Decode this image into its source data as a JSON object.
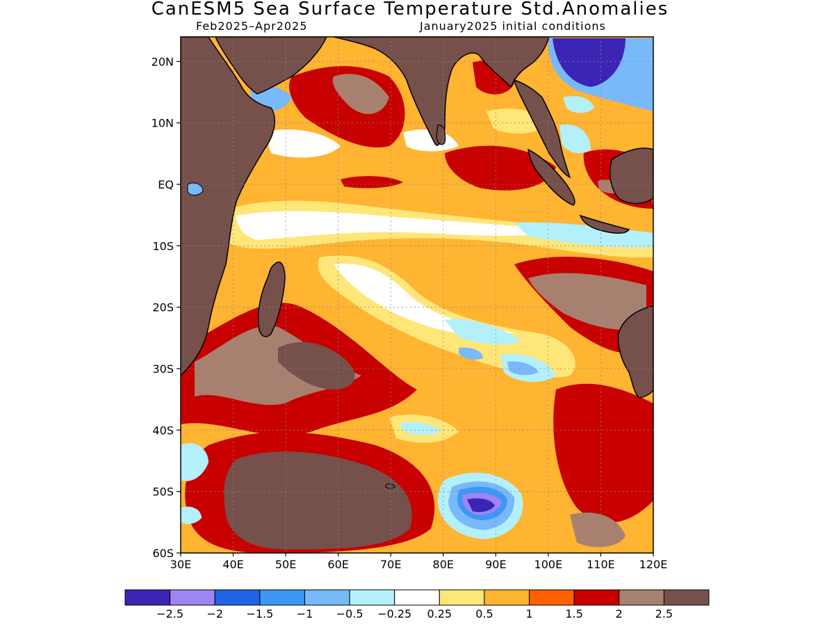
{
  "header": {
    "title": "CanESM5 Sea Surface Temperature Std.Anomalies",
    "period": "Feb2025–Apr2025",
    "init": "January2025 initial conditions"
  },
  "map": {
    "lon_range": [
      30,
      120
    ],
    "lat_range": [
      -60,
      24
    ],
    "lat_ticks": [
      {
        "value": 20,
        "label": "20N"
      },
      {
        "value": 10,
        "label": "10N"
      },
      {
        "value": 0,
        "label": "EQ"
      },
      {
        "value": -10,
        "label": "10S"
      },
      {
        "value": -20,
        "label": "20S"
      },
      {
        "value": -30,
        "label": "30S"
      },
      {
        "value": -40,
        "label": "40S"
      },
      {
        "value": -50,
        "label": "50S"
      },
      {
        "value": -60,
        "label": "60S"
      }
    ],
    "lon_ticks": [
      {
        "value": 30,
        "label": "30E"
      },
      {
        "value": 40,
        "label": "40E"
      },
      {
        "value": 50,
        "label": "50E"
      },
      {
        "value": 60,
        "label": "60E"
      },
      {
        "value": 70,
        "label": "70E"
      },
      {
        "value": 80,
        "label": "80E"
      },
      {
        "value": 90,
        "label": "90E"
      },
      {
        "value": 100,
        "label": "100E"
      },
      {
        "value": 110,
        "label": "110E"
      },
      {
        "value": 120,
        "label": "120E"
      }
    ],
    "grid": true
  },
  "colorbar": {
    "colors": [
      "#3c24b4",
      "#9f84f4",
      "#1e64e6",
      "#3c96f5",
      "#78b9fa",
      "#b4f0fa",
      "#ffffff",
      "#ffe678",
      "#ffb432",
      "#ff6000",
      "#c80000",
      "#a88070",
      "#76504a"
    ],
    "labels": [
      "−2.5",
      "−2",
      "−1.5",
      "−1",
      "−0.5",
      "−0.25",
      "0.25",
      "0.5",
      "1",
      "1.5",
      "2",
      "2.5"
    ]
  },
  "colors": {
    "land": "#76504a",
    "coast": "#000000"
  }
}
